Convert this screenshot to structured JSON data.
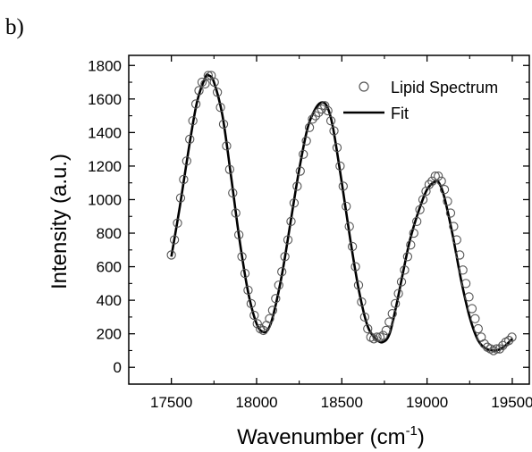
{
  "chart_data": {
    "type": "scatter",
    "panel_label": "b)",
    "title": "",
    "xlabel": "Wavenumber (cm",
    "xlabel_sup": "-1",
    "xlabel_close": ")",
    "ylabel": "Intensity (a.u.)",
    "xlim": [
      17250,
      19600
    ],
    "ylim": [
      -100,
      1860
    ],
    "xticks": [
      17500,
      18000,
      18500,
      19000,
      19500
    ],
    "yticks": [
      0,
      200,
      400,
      600,
      800,
      1000,
      1200,
      1400,
      1600,
      1800
    ],
    "grid": false,
    "legend_position": "top-right",
    "series": [
      {
        "name": "Lipid Spectrum",
        "marker": "open-circle",
        "color": "#555555",
        "x": [
          17500,
          17518,
          17536,
          17554,
          17572,
          17590,
          17608,
          17626,
          17644,
          17662,
          17680,
          17698,
          17716,
          17734,
          17752,
          17770,
          17788,
          17806,
          17824,
          17842,
          17860,
          17878,
          17896,
          17914,
          17932,
          17950,
          17968,
          17986,
          18004,
          18022,
          18040,
          18058,
          18076,
          18094,
          18112,
          18130,
          18148,
          18166,
          18184,
          18202,
          18220,
          18238,
          18256,
          18274,
          18292,
          18310,
          18328,
          18346,
          18364,
          18382,
          18400,
          18418,
          18436,
          18454,
          18472,
          18490,
          18508,
          18526,
          18544,
          18562,
          18580,
          18598,
          18616,
          18634,
          18652,
          18670,
          18688,
          18706,
          18724,
          18742,
          18760,
          18778,
          18796,
          18814,
          18832,
          18850,
          18868,
          18886,
          18904,
          18922,
          18940,
          18958,
          18976,
          18994,
          19012,
          19030,
          19048,
          19066,
          19084,
          19102,
          19120,
          19138,
          19156,
          19174,
          19192,
          19210,
          19228,
          19246,
          19264,
          19282,
          19300,
          19318,
          19336,
          19354,
          19372,
          19390,
          19408,
          19426,
          19444,
          19462,
          19480,
          19498
        ],
        "y": [
          670,
          760,
          860,
          1010,
          1120,
          1230,
          1360,
          1470,
          1570,
          1650,
          1700,
          1690,
          1740,
          1740,
          1700,
          1640,
          1550,
          1450,
          1320,
          1180,
          1040,
          920,
          790,
          660,
          560,
          460,
          380,
          310,
          260,
          230,
          220,
          250,
          290,
          340,
          410,
          490,
          570,
          660,
          760,
          870,
          980,
          1080,
          1170,
          1270,
          1350,
          1430,
          1480,
          1500,
          1520,
          1540,
          1560,
          1530,
          1470,
          1410,
          1310,
          1200,
          1080,
          960,
          840,
          720,
          600,
          490,
          390,
          300,
          230,
          180,
          170,
          180,
          180,
          190,
          220,
          270,
          320,
          380,
          440,
          510,
          580,
          660,
          730,
          800,
          870,
          940,
          1000,
          1050,
          1090,
          1110,
          1140,
          1140,
          1110,
          1060,
          990,
          920,
          840,
          760,
          670,
          580,
          500,
          420,
          350,
          290,
          230,
          180,
          140,
          120,
          110,
          100,
          110,
          110,
          130,
          150,
          160,
          180
        ]
      },
      {
        "name": "Fit",
        "marker": "line",
        "color": "#000000",
        "x": [
          17500,
          17550,
          17600,
          17650,
          17700,
          17720,
          17750,
          17800,
          17850,
          17900,
          17950,
          18000,
          18040,
          18070,
          18100,
          18150,
          18200,
          18250,
          18300,
          18350,
          18390,
          18420,
          18450,
          18500,
          18550,
          18600,
          18650,
          18700,
          18740,
          18780,
          18820,
          18860,
          18900,
          18950,
          19000,
          19050,
          19070,
          19100,
          19150,
          19200,
          19250,
          19300,
          19350,
          19400,
          19430,
          19460,
          19500
        ],
        "y": [
          660,
          960,
          1290,
          1580,
          1730,
          1740,
          1700,
          1500,
          1140,
          760,
          450,
          260,
          210,
          230,
          320,
          560,
          870,
          1180,
          1430,
          1550,
          1580,
          1540,
          1420,
          1100,
          760,
          460,
          250,
          170,
          150,
          200,
          370,
          570,
          760,
          930,
          1060,
          1110,
          1100,
          1020,
          790,
          520,
          300,
          160,
          110,
          100,
          110,
          130,
          170
        ]
      }
    ]
  }
}
